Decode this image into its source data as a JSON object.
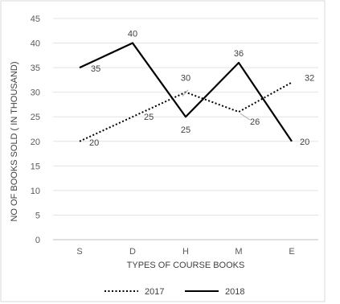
{
  "chart_data": {
    "type": "line",
    "title": "",
    "categories": [
      "S",
      "D",
      "H",
      "M",
      "E"
    ],
    "xlabel": "TYPES OF COURSE BOOKS",
    "ylabel": "NO OF BOOKS SOLD ( IN THOUSAND)",
    "ylim": [
      0,
      45
    ],
    "ytick_step": 5,
    "grid": true,
    "legend_position": "bottom",
    "series": [
      {
        "name": "2017",
        "values": [
          20,
          25,
          30,
          26,
          32
        ],
        "color": "#000000",
        "style": "dotted"
      },
      {
        "name": "2018",
        "values": [
          35,
          40,
          25,
          36,
          20
        ],
        "color": "#000000",
        "style": "solid"
      }
    ]
  }
}
